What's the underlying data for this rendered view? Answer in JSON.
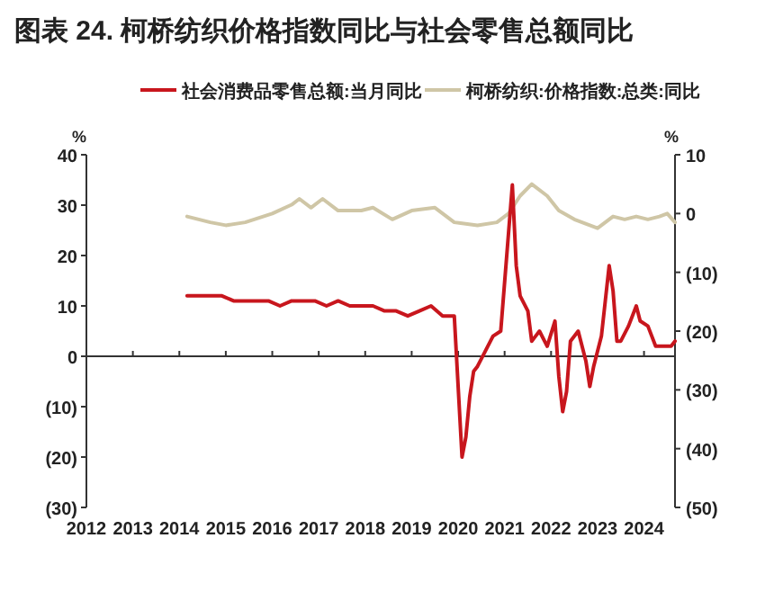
{
  "chart_data": {
    "type": "line",
    "title": "图表 24. 柯桥纺织价格指数同比与社会零售总额同比",
    "ylabel": "%",
    "y2label": "%",
    "legend": "top",
    "xlim": [
      "2012-01",
      "2024-09"
    ],
    "xticks": [
      "2012",
      "2013",
      "2014",
      "2015",
      "2016",
      "2017",
      "2018",
      "2019",
      "2020",
      "2021",
      "2022",
      "2023",
      "2024"
    ],
    "ylim": [
      -30,
      40
    ],
    "yticks": [
      {
        "value": -30,
        "label": "(30)"
      },
      {
        "value": -20,
        "label": "(20)"
      },
      {
        "value": -10,
        "label": "(10)"
      },
      0,
      10,
      20,
      30,
      40
    ],
    "y2lim": [
      -50,
      10
    ],
    "y2ticks": [
      {
        "value": -50,
        "label": "(50)"
      },
      {
        "value": -40,
        "label": "(40)"
      },
      {
        "value": -30,
        "label": "(30)"
      },
      {
        "value": -20,
        "label": "(20)"
      },
      {
        "value": -10,
        "label": "(10)"
      },
      0,
      10
    ],
    "series": [
      {
        "name": "社会消费品零售总额:当月同比",
        "color": "#c8161d",
        "x": [
          "2014-03",
          "2014-06",
          "2014-09",
          "2014-12",
          "2015-03",
          "2015-06",
          "2015-09",
          "2015-12",
          "2016-03",
          "2016-06",
          "2016-09",
          "2016-12",
          "2017-03",
          "2017-06",
          "2017-09",
          "2017-12",
          "2018-03",
          "2018-06",
          "2018-09",
          "2018-12",
          "2019-03",
          "2019-06",
          "2019-09",
          "2019-12",
          "2020-02",
          "2020-03",
          "2020-04",
          "2020-05",
          "2020-06",
          "2020-08",
          "2020-10",
          "2020-12",
          "2021-03",
          "2021-04",
          "2021-05",
          "2021-07",
          "2021-08",
          "2021-09",
          "2021-10",
          "2021-12",
          "2022-02",
          "2022-03",
          "2022-04",
          "2022-05",
          "2022-06",
          "2022-08",
          "2022-10",
          "2022-11",
          "2022-12",
          "2023-02",
          "2023-03",
          "2023-04",
          "2023-05",
          "2023-06",
          "2023-07",
          "2023-09",
          "2023-11",
          "2023-12",
          "2024-02",
          "2024-04",
          "2024-06",
          "2024-08",
          "2024-09"
        ],
        "values": [
          12,
          12,
          12,
          12,
          11,
          11,
          11,
          11,
          10,
          11,
          11,
          11,
          10,
          11,
          10,
          10,
          10,
          9,
          9,
          8,
          9,
          10,
          8,
          8,
          -20,
          -16,
          -8,
          -3,
          -2,
          1,
          4,
          5,
          34,
          18,
          12,
          9,
          3,
          4,
          5,
          2,
          7,
          -4,
          -11,
          -7,
          3,
          5,
          -1,
          -6,
          -2,
          4,
          11,
          18,
          13,
          3,
          3,
          6,
          10,
          7,
          6,
          2,
          2,
          2,
          3
        ]
      },
      {
        "name": "柯桥纺织:价格指数:总类:同比",
        "color": "#cfc6a6",
        "axis": "y2",
        "x": [
          "2014-03",
          "2014-06",
          "2014-09",
          "2015-01",
          "2015-06",
          "2016-01",
          "2016-06",
          "2016-08",
          "2016-11",
          "2017-02",
          "2017-06",
          "2017-12",
          "2018-03",
          "2018-08",
          "2019-01",
          "2019-07",
          "2019-12",
          "2020-06",
          "2020-11",
          "2021-02",
          "2021-05",
          "2021-08",
          "2021-12",
          "2022-03",
          "2022-07",
          "2022-11",
          "2023-01",
          "2023-05",
          "2023-08",
          "2023-11",
          "2024-02",
          "2024-05",
          "2024-07",
          "2024-09"
        ],
        "values": [
          -0.5,
          -1,
          -1.5,
          -2,
          -1.5,
          0,
          1.5,
          2.5,
          1,
          2.5,
          0.5,
          0.5,
          1,
          -1,
          0.5,
          1,
          -1.5,
          -2,
          -1.5,
          0,
          3,
          5,
          3,
          0.5,
          -1,
          -2,
          -2.5,
          -0.5,
          -1,
          -0.5,
          -1,
          -0.5,
          0,
          -1.5
        ]
      }
    ]
  }
}
